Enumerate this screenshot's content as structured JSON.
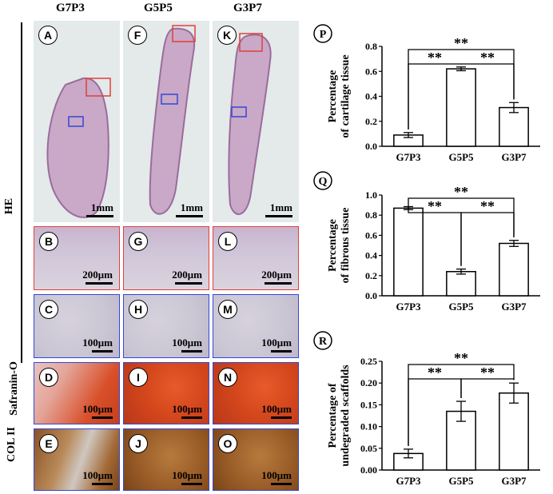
{
  "columns": [
    "G7P3",
    "G5P5",
    "G3P7"
  ],
  "rows": {
    "he": "HE",
    "saf": "Safranin-O",
    "col": "COL II"
  },
  "panels": [
    {
      "letter": "A",
      "scale": "1mm"
    },
    {
      "letter": "F",
      "scale": "1mm"
    },
    {
      "letter": "K",
      "scale": "1mm"
    },
    {
      "letter": "B",
      "scale": "200μm"
    },
    {
      "letter": "G",
      "scale": "200μm"
    },
    {
      "letter": "L",
      "scale": "200μm"
    },
    {
      "letter": "C",
      "scale": "100μm"
    },
    {
      "letter": "H",
      "scale": "100μm"
    },
    {
      "letter": "M",
      "scale": "100μm"
    },
    {
      "letter": "D",
      "scale": "100μm"
    },
    {
      "letter": "I",
      "scale": "100μm"
    },
    {
      "letter": "N",
      "scale": "100μm"
    },
    {
      "letter": "E",
      "scale": "100μm"
    },
    {
      "letter": "J",
      "scale": "100μm"
    },
    {
      "letter": "O",
      "scale": "100μm"
    }
  ],
  "chart_data": [
    {
      "type": "bar",
      "letter": "P",
      "ylabel": [
        "Percentage",
        "of cartilage tissue"
      ],
      "categories": [
        "G7P3",
        "G5P5",
        "G3P7"
      ],
      "values": [
        0.09,
        0.62,
        0.31
      ],
      "errors": [
        0.02,
        0.015,
        0.04
      ],
      "ylim": [
        0,
        0.8
      ],
      "yticks": [
        "0.0",
        "0.2",
        "0.4",
        "0.6",
        "0.8"
      ],
      "significance": [
        "**",
        "**",
        "**"
      ]
    },
    {
      "type": "bar",
      "letter": "Q",
      "ylabel": [
        "Percentage",
        "of fibrous tissue"
      ],
      "categories": [
        "G7P3",
        "G5P5",
        "G3P7"
      ],
      "values": [
        0.87,
        0.24,
        0.52
      ],
      "errors": [
        0.015,
        0.025,
        0.03
      ],
      "ylim": [
        0,
        1.0
      ],
      "yticks": [
        "0.0",
        "0.2",
        "0.4",
        "0.6",
        "0.8",
        "1.0"
      ],
      "significance": [
        "**",
        "**",
        "**"
      ]
    },
    {
      "type": "bar",
      "letter": "R",
      "ylabel": [
        "Percentage of",
        "undegraded scaffolds"
      ],
      "categories": [
        "G7P3",
        "G5P5",
        "G3P7"
      ],
      "values": [
        0.038,
        0.135,
        0.177
      ],
      "errors": [
        0.01,
        0.023,
        0.023
      ],
      "ylim": [
        0,
        0.25
      ],
      "yticks": [
        "0.00",
        "0.05",
        "0.10",
        "0.15",
        "0.20",
        "0.25"
      ],
      "significance": [
        "**",
        "**",
        "**"
      ]
    }
  ]
}
